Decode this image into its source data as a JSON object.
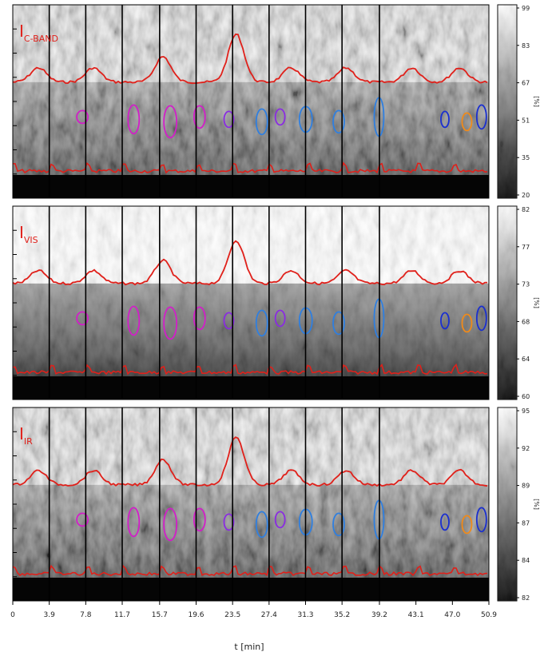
{
  "chart_data": {
    "type": "heatmap",
    "xlabel": "t [min]",
    "xticks": [
      "0",
      "3.9",
      "7.8",
      "11.7",
      "15.7",
      "19.6",
      "23.5",
      "27.4",
      "31.3",
      "35.2",
      "39.2",
      "43.1",
      "47.0",
      "50.9"
    ],
    "xlim": [
      0,
      50.9
    ],
    "segment_boundaries_min": [
      3.9,
      7.8,
      11.7,
      15.7,
      19.6,
      23.5,
      27.4,
      31.3,
      35.2,
      39.2
    ],
    "colorbar_unit": "[%]",
    "panels": [
      {
        "label_main": "I",
        "label_sub": "C-BAND",
        "colorbar_ticks": [
          "99",
          "83",
          "67",
          "51",
          "35",
          "20"
        ],
        "colorbar_range": [
          20,
          99
        ]
      },
      {
        "label_main": "I",
        "label_sub": "VIS",
        "colorbar_ticks": [
          "82",
          "77",
          "73",
          "68",
          "64",
          "60"
        ],
        "colorbar_range": [
          60,
          82
        ]
      },
      {
        "label_main": "I",
        "label_sub": "IR",
        "colorbar_ticks": [
          "95",
          "92",
          "89",
          "87",
          "84",
          "82"
        ],
        "colorbar_range": [
          82,
          95
        ]
      }
    ],
    "contour_colors": {
      "boundary": "#e0201a",
      "magenta": "#d21ec8",
      "purple": "#8a2be2",
      "light_blue": "#2f7fe0",
      "dark_blue": "#1a2fd0",
      "orange": "#f08a1a"
    }
  }
}
